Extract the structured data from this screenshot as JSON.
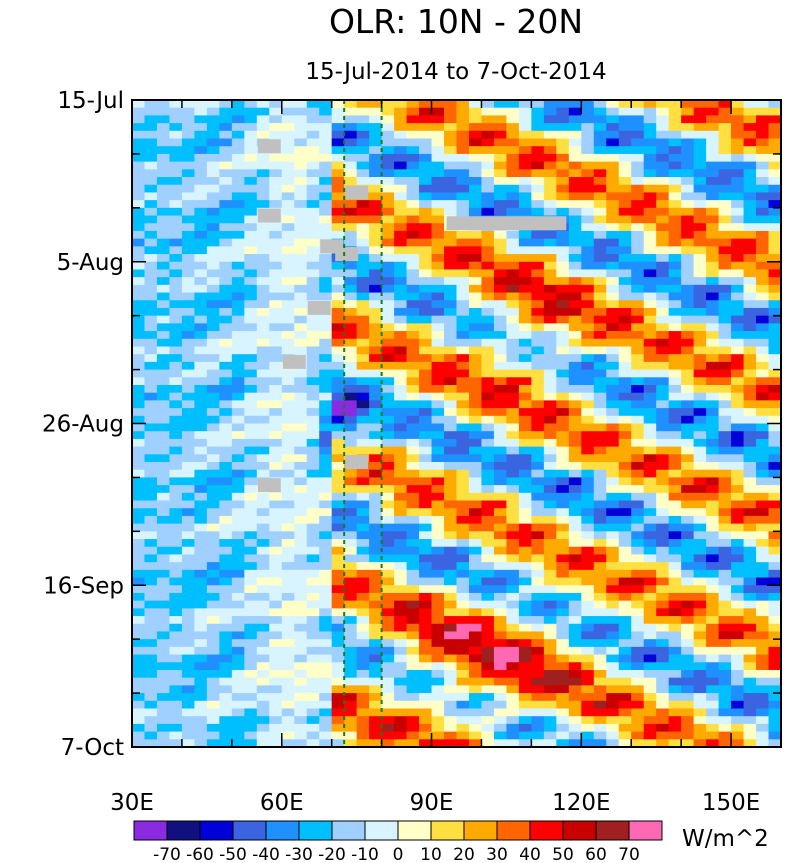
{
  "chart_data": {
    "type": "heatmap",
    "title": "OLR: 10N - 20N",
    "subtitle": "15-Jul-2014 to 7-Oct-2014",
    "xlabel": "",
    "ylabel": "",
    "x_range": [
      30,
      160
    ],
    "y_range_days": [
      0,
      84
    ],
    "x_ticks": [
      {
        "value": 30,
        "label": "30E"
      },
      {
        "value": 60,
        "label": "60E"
      },
      {
        "value": 90,
        "label": "90E"
      },
      {
        "value": 120,
        "label": "120E"
      },
      {
        "value": 150,
        "label": "150E"
      }
    ],
    "y_ticks": [
      {
        "day": 0,
        "label": "15-Jul"
      },
      {
        "day": 21,
        "label": "5-Aug"
      },
      {
        "day": 42,
        "label": "26-Aug"
      },
      {
        "day": 63,
        "label": "16-Sep"
      },
      {
        "day": 84,
        "label": "7-Oct"
      }
    ],
    "reference_lines_lon": [
      72.5,
      80
    ],
    "colorbar": {
      "units": "W/m^2",
      "levels": [
        -70,
        -60,
        -50,
        -40,
        -30,
        -20,
        -10,
        0,
        10,
        20,
        30,
        40,
        50,
        60,
        70
      ],
      "colors": [
        "#8a2be2",
        "#10107f",
        "#0000d8",
        "#3a64e0",
        "#1e90ff",
        "#00bfff",
        "#a0d0ff",
        "#d8f4ff",
        "#ffffc8",
        "#ffe040",
        "#ffaa00",
        "#ff6600",
        "#ff0000",
        "#c80000",
        "#a02020",
        "#ff69b4"
      ]
    },
    "missing_patches": [
      {
        "lon": 57.5,
        "day": 6
      },
      {
        "lon": 75,
        "day": 12
      },
      {
        "lon": 57.5,
        "day": 15
      },
      {
        "lon": 70,
        "day": 19
      },
      {
        "lon": 73,
        "day": 20
      },
      {
        "lon": 67.5,
        "day": 27
      },
      {
        "lon": 62.5,
        "day": 34
      },
      {
        "lon": 75,
        "day": 47
      },
      {
        "lon": 57.5,
        "day": 50
      },
      {
        "lon": 105,
        "day": 16,
        "span_lon": [
          93,
          117
        ]
      }
    ]
  }
}
